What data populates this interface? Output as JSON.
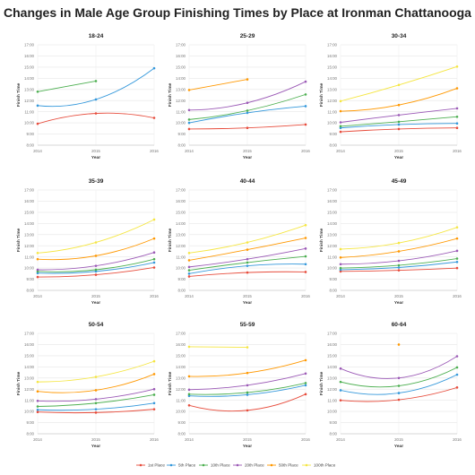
{
  "title": "Changes in Male Age Group Finishing Times by Place at Ironman Chattanooga",
  "chart_data": {
    "type": "line",
    "x": [
      "2014",
      "2015",
      "2016"
    ],
    "xlabel": "Year",
    "ylabel": "Finish Time",
    "ylim": [
      8,
      17
    ],
    "yticks": [
      "8:00",
      "9:00",
      "10:00",
      "11:00",
      "12:00",
      "13:00",
      "14:00",
      "15:00",
      "16:00",
      "17:00"
    ],
    "grid": true,
    "legend_position": "bottom",
    "series_meta": [
      {
        "name": "1st Place",
        "color": "#e74c3c"
      },
      {
        "name": "5th Place",
        "color": "#3498db"
      },
      {
        "name": "10th Place",
        "color": "#4caf50"
      },
      {
        "name": "20th Place",
        "color": "#9b59b6"
      },
      {
        "name": "50th Place",
        "color": "#ff9800"
      },
      {
        "name": "100th Place",
        "color": "#f5e642"
      }
    ],
    "panels": [
      {
        "title": "18-24",
        "series": [
          [
            9.92,
            10.85,
            10.45
          ],
          [
            11.55,
            12.1,
            14.9
          ],
          [
            12.8,
            13.75,
            null
          ],
          [
            null,
            null,
            null
          ],
          [
            null,
            null,
            null
          ],
          [
            null,
            null,
            null
          ]
        ]
      },
      {
        "title": "25-29",
        "series": [
          [
            9.45,
            9.55,
            9.85
          ],
          [
            10.0,
            10.9,
            11.5
          ],
          [
            10.3,
            11.1,
            12.55
          ],
          [
            11.15,
            11.8,
            13.7
          ],
          [
            12.95,
            13.9,
            null
          ],
          [
            null,
            null,
            null
          ]
        ]
      },
      {
        "title": "30-34",
        "series": [
          [
            9.2,
            9.45,
            9.55
          ],
          [
            9.55,
            9.85,
            9.95
          ],
          [
            9.7,
            10.1,
            10.55
          ],
          [
            10.05,
            10.7,
            11.3
          ],
          [
            11.05,
            11.6,
            13.1
          ],
          [
            11.95,
            13.4,
            15.05
          ]
        ]
      },
      {
        "title": "35-39",
        "series": [
          [
            9.2,
            9.4,
            10.05
          ],
          [
            9.55,
            9.7,
            10.5
          ],
          [
            9.7,
            9.85,
            10.8
          ],
          [
            9.85,
            10.2,
            11.4
          ],
          [
            10.8,
            11.1,
            12.65
          ],
          [
            11.35,
            12.3,
            14.35
          ]
        ]
      },
      {
        "title": "40-44",
        "series": [
          [
            9.25,
            9.6,
            9.65
          ],
          [
            9.5,
            10.2,
            10.35
          ],
          [
            9.8,
            10.5,
            11.05
          ],
          [
            10.1,
            10.8,
            11.75
          ],
          [
            10.7,
            11.65,
            12.7
          ],
          [
            11.35,
            12.3,
            13.85
          ]
        ]
      },
      {
        "title": "45-49",
        "series": [
          [
            9.7,
            9.8,
            10.0
          ],
          [
            9.85,
            10.05,
            10.55
          ],
          [
            10.0,
            10.25,
            10.85
          ],
          [
            10.35,
            10.65,
            11.55
          ],
          [
            10.95,
            11.5,
            12.65
          ],
          [
            11.7,
            12.25,
            13.65
          ]
        ]
      },
      {
        "title": "50-54",
        "series": [
          [
            9.95,
            9.9,
            10.2
          ],
          [
            10.15,
            10.2,
            10.75
          ],
          [
            10.45,
            10.75,
            11.5
          ],
          [
            10.95,
            11.1,
            12.0
          ],
          [
            11.8,
            11.9,
            13.35
          ],
          [
            12.65,
            13.1,
            14.5
          ]
        ]
      },
      {
        "title": "55-59",
        "series": [
          [
            10.55,
            10.1,
            11.55
          ],
          [
            11.4,
            11.5,
            12.35
          ],
          [
            11.55,
            11.7,
            12.55
          ],
          [
            11.95,
            12.35,
            13.4
          ],
          [
            13.15,
            13.45,
            14.6
          ],
          [
            15.8,
            15.75,
            null
          ]
        ]
      },
      {
        "title": "60-64",
        "series": [
          [
            11.0,
            11.05,
            12.15
          ],
          [
            11.9,
            11.65,
            13.3
          ],
          [
            12.65,
            12.3,
            13.95
          ],
          [
            13.85,
            13.0,
            14.95
          ],
          [
            null,
            16.0,
            null
          ],
          [
            null,
            null,
            null
          ]
        ]
      }
    ]
  }
}
